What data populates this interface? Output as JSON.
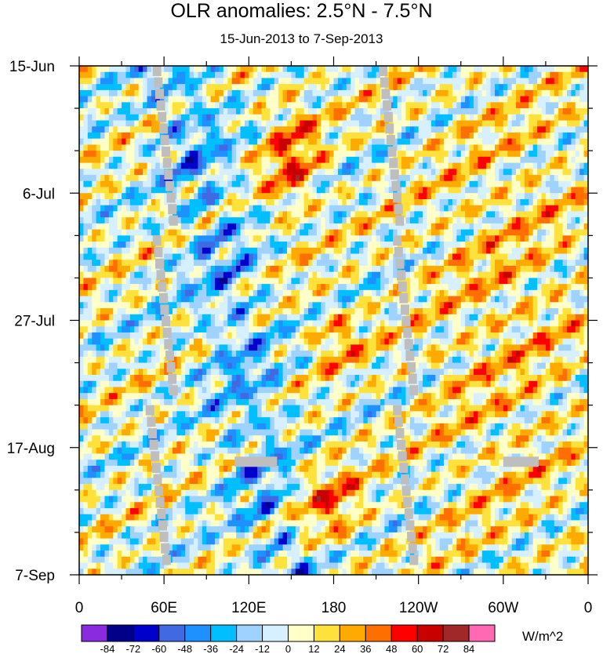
{
  "title": "OLR anomalies: 2.5°N - 7.5°N",
  "subtitle": "15-Jun-2013 to 7-Sep-2013",
  "chart_data": {
    "type": "heatmap",
    "x_axis": {
      "tick_labels": [
        "0",
        "60E",
        "120E",
        "180",
        "120W",
        "60W",
        "0"
      ],
      "tick_values_deg_east": [
        0,
        60,
        120,
        180,
        240,
        300,
        360
      ],
      "range": [
        0,
        360
      ]
    },
    "y_axis": {
      "tick_labels": [
        "15-Jun",
        "6-Jul",
        "27-Jul",
        "17-Aug",
        "7-Sep"
      ],
      "tick_values_day": [
        0,
        21,
        42,
        63,
        84
      ],
      "range_dates": [
        "15-Jun-2013",
        "7-Sep-2013"
      ],
      "direction": "time increases downward"
    },
    "colorbar": {
      "labels": [
        "-84",
        "-72",
        "-60",
        "-48",
        "-36",
        "-24",
        "-12",
        "0",
        "12",
        "24",
        "36",
        "48",
        "60",
        "72",
        "84"
      ],
      "levels": [
        -84,
        -72,
        -60,
        -48,
        -36,
        -24,
        -12,
        0,
        12,
        24,
        36,
        48,
        60,
        72,
        84
      ],
      "colors": [
        "#8a2be2",
        "#00008b",
        "#0000cd",
        "#4169e1",
        "#1e90ff",
        "#00bfff",
        "#a0d2ff",
        "#d6f0ff",
        "#ffffc8",
        "#ffe13c",
        "#ffaa00",
        "#ff6e00",
        "#ff0000",
        "#c80000",
        "#a02828",
        "#ff69b4"
      ],
      "units": "W/m^2"
    },
    "missing_color": "#bebebe",
    "features": [
      {
        "desc": "strong negative anomaly band",
        "lon": [
          40,
          160
        ],
        "day": [
          0,
          84
        ],
        "value": -60
      },
      {
        "desc": "strong positive anomaly region",
        "lon": [
          130,
          170
        ],
        "day": [
          5,
          25
        ],
        "value": 55
      },
      {
        "desc": "positive anomaly region",
        "lon": [
          150,
          200
        ],
        "day": [
          65,
          80
        ],
        "value": 50
      },
      {
        "desc": "positive anomaly patch",
        "lon": [
          165,
          200
        ],
        "day": [
          40,
          50
        ],
        "value": 40
      },
      {
        "desc": "positive anomalies east pacific",
        "lon": [
          240,
          360
        ],
        "day": [
          0,
          84
        ],
        "value": 25
      }
    ]
  }
}
